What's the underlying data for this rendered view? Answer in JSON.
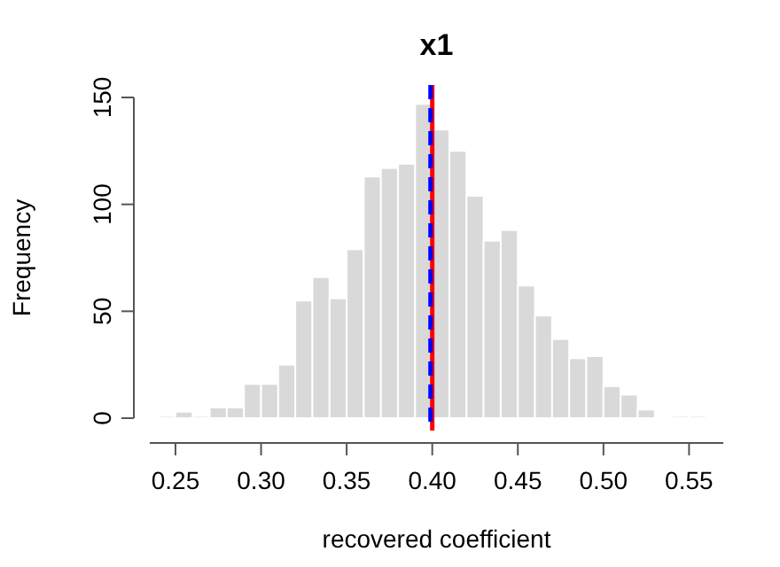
{
  "chart_data": {
    "type": "histogram",
    "title": "x1",
    "xlabel": "recovered coefficient",
    "ylabel": "Frequency",
    "bins": [
      0.24,
      0.25,
      0.26,
      0.27,
      0.28,
      0.29,
      0.3,
      0.31,
      0.32,
      0.33,
      0.34,
      0.35,
      0.36,
      0.37,
      0.38,
      0.39,
      0.4,
      0.41,
      0.42,
      0.43,
      0.44,
      0.45,
      0.46,
      0.47,
      0.48,
      0.49,
      0.5,
      0.51,
      0.52,
      0.53,
      0.54,
      0.55,
      0.56
    ],
    "values": [
      1,
      3,
      1,
      5,
      5,
      16,
      16,
      25,
      55,
      66,
      56,
      79,
      113,
      117,
      119,
      147,
      135,
      125,
      104,
      83,
      88,
      62,
      48,
      37,
      28,
      29,
      15,
      11,
      4,
      0,
      1,
      1
    ],
    "color": "#d9d9d9",
    "xlim": [
      0.235,
      0.57
    ],
    "xticks": [
      {
        "value": 0.25,
        "label": "0.25"
      },
      {
        "value": 0.3,
        "label": "0.30"
      },
      {
        "value": 0.35,
        "label": "0.35"
      },
      {
        "value": 0.4,
        "label": "0.40"
      },
      {
        "value": 0.45,
        "label": "0.45"
      },
      {
        "value": 0.5,
        "label": "0.50"
      },
      {
        "value": 0.55,
        "label": "0.55"
      }
    ],
    "ylim": [
      0,
      150
    ],
    "yticks": [
      0,
      50,
      100,
      150
    ],
    "ref_lines": [
      {
        "axis": "x",
        "value": 0.4,
        "color": "#ff0000",
        "line_style": "solid"
      },
      {
        "axis": "x",
        "value": 0.399,
        "color": "#0000ff",
        "line_style": "dashed"
      }
    ]
  }
}
